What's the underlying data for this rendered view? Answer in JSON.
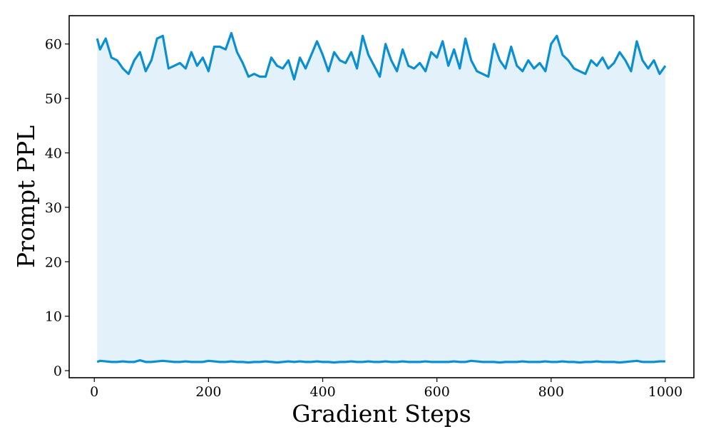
{
  "chart_data": {
    "type": "line",
    "x_label": "Gradient Steps",
    "y_label": "Prompt PPL",
    "x": [
      5,
      10,
      20,
      30,
      40,
      50,
      60,
      70,
      80,
      90,
      100,
      110,
      120,
      130,
      140,
      150,
      160,
      170,
      180,
      190,
      200,
      210,
      220,
      230,
      240,
      250,
      260,
      270,
      280,
      290,
      300,
      310,
      320,
      330,
      340,
      350,
      360,
      370,
      380,
      390,
      400,
      410,
      420,
      430,
      440,
      450,
      460,
      470,
      480,
      490,
      500,
      510,
      520,
      530,
      540,
      550,
      560,
      570,
      580,
      590,
      600,
      610,
      620,
      630,
      640,
      650,
      660,
      670,
      680,
      690,
      700,
      710,
      720,
      730,
      740,
      750,
      760,
      770,
      780,
      790,
      800,
      810,
      820,
      830,
      840,
      850,
      860,
      870,
      880,
      890,
      900,
      910,
      920,
      930,
      940,
      950,
      960,
      970,
      980,
      990,
      1000
    ],
    "series": [
      {
        "color": "#0b8fd3",
        "values": [
          61,
          59,
          61,
          57.5,
          57,
          55.5,
          54.5,
          57,
          58.5,
          55,
          57,
          61,
          61.5,
          55.5,
          56,
          56.5,
          55.5,
          58.5,
          56,
          57.5,
          55,
          59.5,
          59.5,
          59,
          62,
          58.5,
          56.5,
          54,
          54.5,
          54,
          54,
          57.5,
          56,
          55.5,
          57,
          53.5,
          57.5,
          55.5,
          58,
          60.5,
          58,
          55,
          58.5,
          57,
          56.5,
          58.5,
          55.5,
          61.5,
          58,
          56,
          54,
          60,
          57,
          55,
          59,
          56,
          55.5,
          56.5,
          55,
          58.5,
          57.5,
          60.5,
          56,
          59,
          55.5,
          61,
          57,
          55,
          54.5,
          54,
          60,
          57,
          55.5,
          59.5,
          56,
          55,
          57,
          55.5,
          56.5,
          55,
          60,
          61.5,
          58,
          57,
          55.5,
          55,
          54.5,
          57,
          56,
          57.5,
          55.5,
          56.5,
          58.5,
          57,
          55,
          60.5,
          57,
          55.5,
          57,
          54.5,
          56
        ]
      },
      {
        "color": "#0b8fd3",
        "values": [
          1.6,
          1.8,
          1.7,
          1.6,
          1.6,
          1.7,
          1.6,
          1.6,
          1.9,
          1.6,
          1.6,
          1.7,
          1.8,
          1.7,
          1.6,
          1.6,
          1.7,
          1.6,
          1.6,
          1.6,
          1.8,
          1.7,
          1.6,
          1.6,
          1.7,
          1.6,
          1.6,
          1.5,
          1.6,
          1.6,
          1.7,
          1.6,
          1.5,
          1.6,
          1.7,
          1.6,
          1.7,
          1.6,
          1.6,
          1.7,
          1.6,
          1.6,
          1.5,
          1.6,
          1.6,
          1.7,
          1.6,
          1.6,
          1.7,
          1.6,
          1.6,
          1.7,
          1.6,
          1.6,
          1.7,
          1.6,
          1.6,
          1.6,
          1.7,
          1.6,
          1.6,
          1.6,
          1.6,
          1.7,
          1.6,
          1.6,
          1.8,
          1.7,
          1.6,
          1.6,
          1.6,
          1.5,
          1.6,
          1.6,
          1.6,
          1.7,
          1.6,
          1.6,
          1.6,
          1.7,
          1.6,
          1.6,
          1.7,
          1.6,
          1.6,
          1.5,
          1.6,
          1.6,
          1.7,
          1.6,
          1.6,
          1.6,
          1.5,
          1.6,
          1.7,
          1.8,
          1.6,
          1.6,
          1.6,
          1.7,
          1.7
        ]
      }
    ],
    "fill_between": true,
    "fill_color": "#e3f2fa",
    "xlim": [
      -44,
      1050
    ],
    "ylim": [
      -1.3,
      65.2
    ],
    "xticks": [
      0,
      200,
      400,
      600,
      800,
      1000
    ],
    "yticks": [
      0,
      10,
      20,
      30,
      40,
      50,
      60
    ]
  }
}
